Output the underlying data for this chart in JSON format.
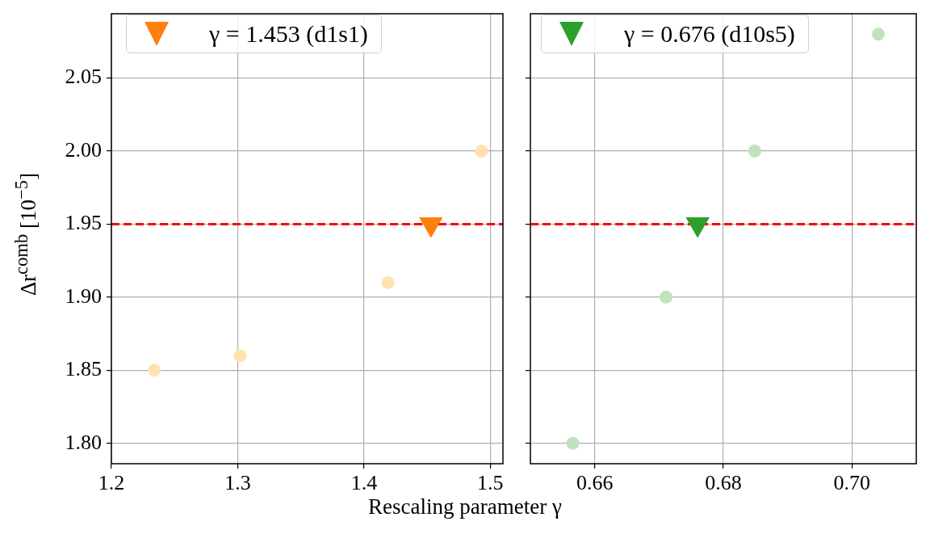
{
  "chart_data": [
    {
      "type": "scatter",
      "ylabel": "Δr$^{comb}$ [10$^{−5}$]",
      "xlabel": "Rescaling parameter γ",
      "xlim": [
        1.2,
        1.51
      ],
      "xticks": [
        1.2,
        1.3,
        1.4,
        1.5
      ],
      "ylim": [
        1.786,
        2.094
      ],
      "yticks": [
        {
          "value": 1.8,
          "label": "1.80"
        },
        1.85,
        {
          "value": 1.9,
          "label": "1.90"
        },
        1.95,
        {
          "value": 2.0,
          "label": "2.00"
        },
        2.05
      ],
      "grid": true,
      "legend": "top left",
      "ref_lines": [
        {
          "axis": "y",
          "value": 1.95,
          "color": "#ff0000",
          "line_style": "dashed"
        }
      ],
      "series": [
        {
          "color": "#ffe2b0",
          "marker": "circle",
          "x": [
            1.234,
            1.302,
            1.419,
            1.493
          ],
          "values": [
            1.85,
            1.86,
            1.91,
            2.0
          ]
        },
        {
          "name": "γ = 1.453 (d1s1)",
          "color": "#ff7f0e",
          "marker": "triangle",
          "x": [
            1.453
          ],
          "values": [
            1.95
          ]
        }
      ]
    },
    {
      "type": "scatter",
      "xlim": [
        0.65,
        0.71
      ],
      "xticks": [
        0.66,
        0.68,
        {
          "value": 0.7,
          "label": "0.70"
        }
      ],
      "ylim": [
        1.786,
        2.094
      ],
      "yticks": [
        1.8,
        1.85,
        1.9,
        1.95,
        2.0,
        2.05
      ],
      "grid": true,
      "legend": "top left",
      "tick_labels": "x",
      "ref_lines": [
        {
          "axis": "y",
          "value": 1.95,
          "color": "#ff0000",
          "line_style": "dashed"
        }
      ],
      "series": [
        {
          "color": "#bfe3bf",
          "marker": "circle",
          "x": [
            0.6566,
            0.6711,
            0.6849,
            0.7041
          ],
          "values": [
            1.8,
            1.9,
            2.0,
            2.08
          ]
        },
        {
          "name": "γ = 0.676 (d10s5)",
          "color": "#2ca02c",
          "marker": "triangle",
          "x": [
            0.676
          ],
          "values": [
            1.95
          ]
        }
      ]
    }
  ]
}
